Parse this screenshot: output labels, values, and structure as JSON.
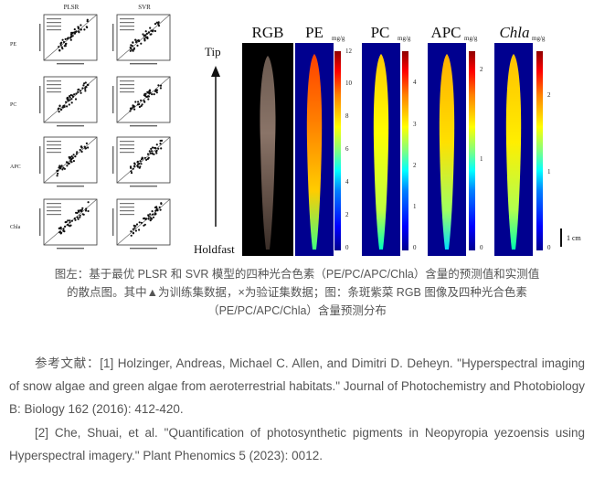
{
  "figure": {
    "scatter": {
      "col_heads": [
        "PLSR",
        "SVR"
      ],
      "row_labels": [
        "PE",
        "PC",
        "APC",
        "Chla"
      ]
    },
    "maps": {
      "tip_label": "Tip",
      "holdfast_label": "Holdfast",
      "scale_label": "1 cm",
      "panels": [
        {
          "head": "RGB",
          "unit": "",
          "ticks": []
        },
        {
          "head": "PE",
          "unit": "mg/g",
          "ticks": [
            "12",
            "10",
            "8",
            "6",
            "4",
            "2",
            "0"
          ]
        },
        {
          "head": "PC",
          "unit": "mg/g",
          "ticks": [
            "4",
            "3",
            "2",
            "1",
            "0"
          ]
        },
        {
          "head": "APC",
          "unit": "mg/g",
          "ticks": [
            "2",
            "1",
            "0"
          ]
        },
        {
          "head": "Chla",
          "unit": "mg/g",
          "ticks": [
            "2",
            "1",
            "0"
          ]
        }
      ]
    }
  },
  "caption": {
    "line1": "图左：基于最优 PLSR 和 SVR 模型的四种光合色素（PE/PC/APC/Chla）含量的预测值和实测值",
    "line2": "的散点图。其中▲为训练集数据，×为验证集数据；图：条斑紫菜 RGB 图像及四种光合色素",
    "line3": "（PE/PC/APC/Chla）含量预测分布"
  },
  "references": {
    "ref1": "参考文献：[1] Holzinger, Andreas, Michael C. Allen, and Dimitri D. Deheyn. \"Hyperspectral imaging of snow algae and green algae from aeroterrestrial habitats.\" Journal of Photochemistry and Photobiology B: Biology 162 (2016): 412-420.",
    "ref2": "[2] Che, Shuai, et al. \"Quantification of photosynthetic pigments in Neopyropia yezoensis using Hyperspectral imagery.\" Plant Phenomics 5 (2023): 0012."
  }
}
